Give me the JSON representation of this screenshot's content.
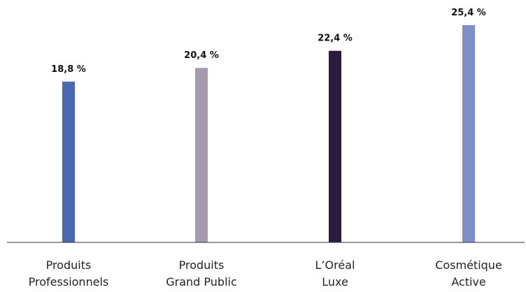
{
  "chart_data": {
    "type": "bar",
    "categories": [
      [
        "Produits",
        "Professionnels"
      ],
      [
        "Produits",
        "Grand Public"
      ],
      [
        "L’Oréal",
        "Luxe"
      ],
      [
        "Cosmétique",
        "Active"
      ]
    ],
    "values": [
      18.8,
      20.4,
      22.4,
      25.4
    ],
    "value_labels": [
      "18,8 %",
      "20,4 %",
      "22,4 %",
      "25,4 %"
    ],
    "colors": [
      "#4a68b0",
      "#a59aae",
      "#2b1c3d",
      "#7d8fc8"
    ],
    "axis_color": "#333333",
    "ylim": [
      0,
      25.4
    ],
    "title": "",
    "xlabel": "",
    "ylabel": "",
    "grid": false,
    "legend": "none"
  }
}
